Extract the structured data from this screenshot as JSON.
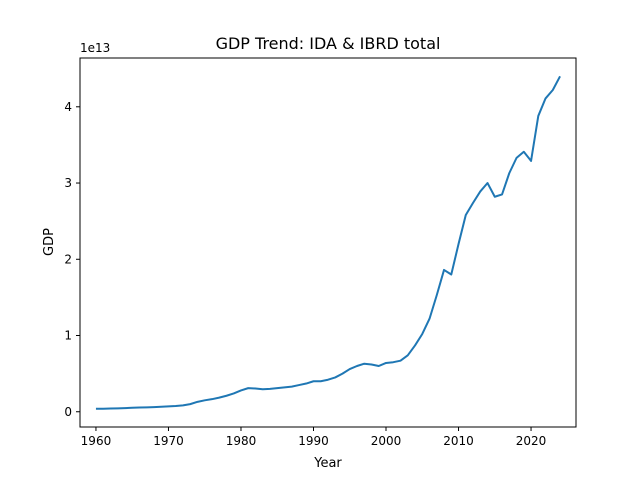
{
  "chart_data": {
    "type": "line",
    "title": "GDP Trend: IDA & IBRD total",
    "xlabel": "Year",
    "ylabel": "GDP",
    "y_scale_label": "1e13",
    "xlim": [
      1957.8,
      2026.2
    ],
    "ylim": [
      -0.2,
      4.64
    ],
    "y_unit_multiplier": 10000000000000.0,
    "x_ticks": [
      1960,
      1970,
      1980,
      1990,
      2000,
      2010,
      2020
    ],
    "y_ticks": [
      0,
      1,
      2,
      3,
      4
    ],
    "grid": false,
    "legend": "none",
    "series": [
      {
        "color": "#1f77b4",
        "x": [
          1960,
          1961,
          1962,
          1963,
          1964,
          1965,
          1966,
          1967,
          1968,
          1969,
          1970,
          1971,
          1972,
          1973,
          1974,
          1975,
          1976,
          1977,
          1978,
          1979,
          1980,
          1981,
          1982,
          1983,
          1984,
          1985,
          1986,
          1987,
          1988,
          1989,
          1990,
          1991,
          1992,
          1993,
          1994,
          1995,
          1996,
          1997,
          1998,
          1999,
          2000,
          2001,
          2002,
          2003,
          2004,
          2005,
          2006,
          2007,
          2008,
          2009,
          2010,
          2011,
          2012,
          2013,
          2014,
          2015,
          2016,
          2017,
          2018,
          2019,
          2020,
          2021,
          2022,
          2023,
          2024
        ],
        "values": [
          0.04,
          0.04,
          0.042,
          0.045,
          0.048,
          0.052,
          0.055,
          0.057,
          0.06,
          0.065,
          0.07,
          0.075,
          0.083,
          0.1,
          0.13,
          0.15,
          0.165,
          0.185,
          0.21,
          0.24,
          0.28,
          0.31,
          0.305,
          0.295,
          0.3,
          0.31,
          0.32,
          0.33,
          0.35,
          0.37,
          0.4,
          0.4,
          0.42,
          0.45,
          0.5,
          0.56,
          0.6,
          0.63,
          0.62,
          0.6,
          0.64,
          0.65,
          0.67,
          0.74,
          0.87,
          1.02,
          1.22,
          1.53,
          1.86,
          1.8,
          2.2,
          2.58,
          2.74,
          2.89,
          3.0,
          2.82,
          2.85,
          3.13,
          3.33,
          3.41,
          3.29,
          3.88,
          4.11,
          4.22,
          4.4
        ]
      }
    ]
  }
}
